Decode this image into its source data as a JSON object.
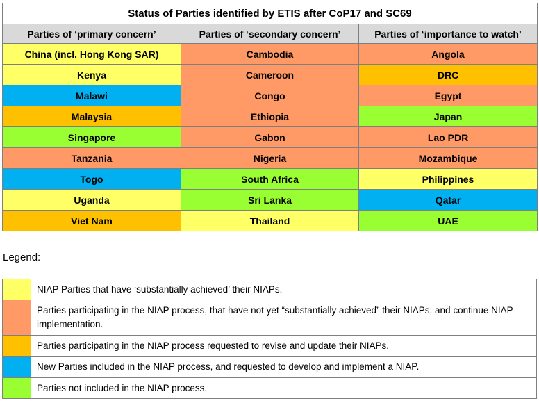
{
  "colors": {
    "yellow": "#ffff66",
    "salmon": "#ff9966",
    "orange": "#ffc000",
    "blue": "#00b0f0",
    "green": "#99ff33",
    "header_gray": "#d9d9d9"
  },
  "status_table": {
    "title": "Status of Parties identified by ETIS after CoP17 and SC69",
    "headers": [
      "Parties of ‘primary concern’",
      "Parties of ‘secondary concern’",
      "Parties of ‘importance to watch’"
    ],
    "rows": [
      [
        {
          "name": "China (incl. Hong Kong SAR)",
          "status": "yellow"
        },
        {
          "name": "Cambodia",
          "status": "salmon"
        },
        {
          "name": "Angola",
          "status": "salmon"
        }
      ],
      [
        {
          "name": "Kenya",
          "status": "yellow"
        },
        {
          "name": "Cameroon",
          "status": "salmon"
        },
        {
          "name": "DRC",
          "status": "orange"
        }
      ],
      [
        {
          "name": "Malawi",
          "status": "blue"
        },
        {
          "name": "Congo",
          "status": "salmon"
        },
        {
          "name": "Egypt",
          "status": "salmon"
        }
      ],
      [
        {
          "name": "Malaysia",
          "status": "orange"
        },
        {
          "name": "Ethiopia",
          "status": "salmon"
        },
        {
          "name": "Japan",
          "status": "green"
        }
      ],
      [
        {
          "name": "Singapore",
          "status": "green"
        },
        {
          "name": "Gabon",
          "status": "salmon"
        },
        {
          "name": "Lao PDR",
          "status": "salmon"
        }
      ],
      [
        {
          "name": "Tanzania",
          "status": "salmon"
        },
        {
          "name": "Nigeria",
          "status": "salmon"
        },
        {
          "name": "Mozambique",
          "status": "salmon"
        }
      ],
      [
        {
          "name": "Togo",
          "status": "blue"
        },
        {
          "name": "South Africa",
          "status": "green"
        },
        {
          "name": "Philippines",
          "status": "yellow"
        }
      ],
      [
        {
          "name": "Uganda",
          "status": "yellow"
        },
        {
          "name": "Sri Lanka",
          "status": "green"
        },
        {
          "name": "Qatar",
          "status": "blue"
        }
      ],
      [
        {
          "name": "Viet Nam",
          "status": "orange"
        },
        {
          "name": "Thailand",
          "status": "yellow"
        },
        {
          "name": "UAE",
          "status": "green"
        }
      ]
    ]
  },
  "legend": {
    "label": "Legend:",
    "items": [
      {
        "status": "yellow",
        "text": "NIAP Parties that have ‘substantially achieved’ their NIAPs."
      },
      {
        "status": "salmon",
        "text": "Parties participating in the NIAP process, that have not yet “substantially achieved” their NIAPs, and continue NIAP implementation."
      },
      {
        "status": "orange",
        "text": "Parties participating in the NIAP process requested to revise and update their NIAPs."
      },
      {
        "status": "blue",
        "text": "New Parties included in the NIAP process, and requested to develop and implement a NIAP."
      },
      {
        "status": "green",
        "text": "Parties not included in the NIAP process."
      }
    ]
  }
}
